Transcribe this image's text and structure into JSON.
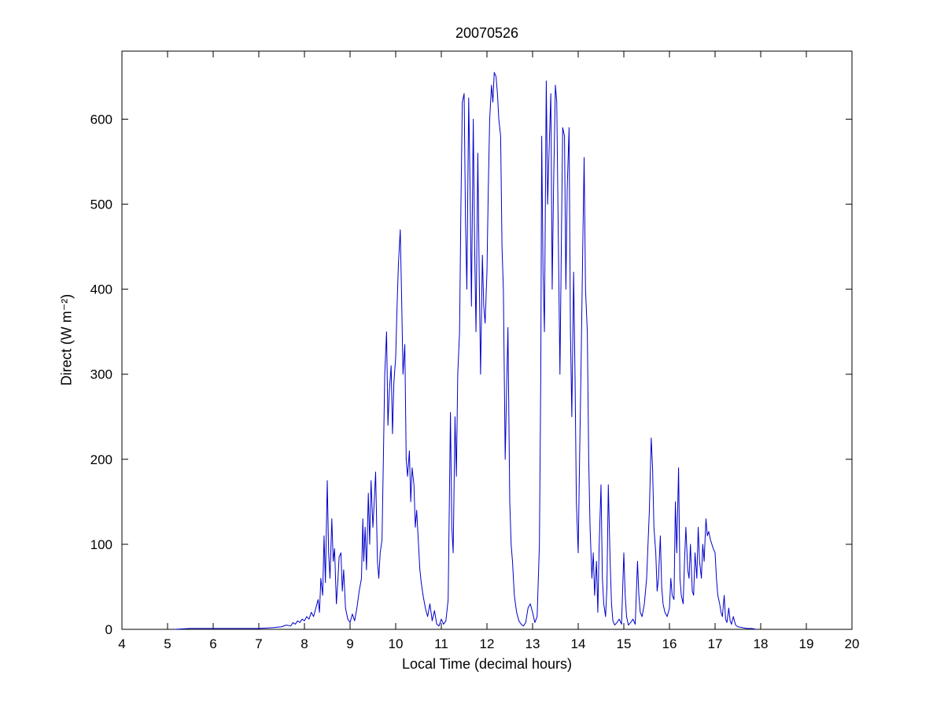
{
  "figure": {
    "background": "#FFFFFF"
  },
  "chart_data": {
    "type": "line",
    "title": "20070526",
    "xlabel": "Local Time (decimal hours)",
    "ylabel": "Direct (W m⁻²)",
    "xlim": [
      4,
      20
    ],
    "ylim": [
      0,
      680
    ],
    "x_ticks": [
      4,
      5,
      6,
      7,
      8,
      9,
      10,
      11,
      12,
      13,
      14,
      15,
      16,
      17,
      18,
      19,
      20
    ],
    "y_ticks": [
      0,
      100,
      200,
      300,
      400,
      500,
      600
    ],
    "grid": false,
    "legend": null,
    "line_color": "#0000CC",
    "axis_color": "#000000",
    "series": [
      {
        "name": "Direct",
        "points": [
          [
            5.15,
            0
          ],
          [
            5.5,
            1
          ],
          [
            6.0,
            1
          ],
          [
            6.5,
            1
          ],
          [
            7.0,
            1
          ],
          [
            7.3,
            2
          ],
          [
            7.5,
            3
          ],
          [
            7.6,
            5
          ],
          [
            7.7,
            4
          ],
          [
            7.75,
            8
          ],
          [
            7.8,
            6
          ],
          [
            7.85,
            10
          ],
          [
            7.9,
            8
          ],
          [
            7.95,
            12
          ],
          [
            8.0,
            10
          ],
          [
            8.05,
            15
          ],
          [
            8.1,
            12
          ],
          [
            8.15,
            20
          ],
          [
            8.2,
            15
          ],
          [
            8.25,
            25
          ],
          [
            8.3,
            35
          ],
          [
            8.33,
            20
          ],
          [
            8.36,
            60
          ],
          [
            8.4,
            40
          ],
          [
            8.43,
            110
          ],
          [
            8.46,
            55
          ],
          [
            8.5,
            175
          ],
          [
            8.53,
            90
          ],
          [
            8.56,
            60
          ],
          [
            8.6,
            130
          ],
          [
            8.63,
            80
          ],
          [
            8.66,
            95
          ],
          [
            8.7,
            30
          ],
          [
            8.73,
            55
          ],
          [
            8.76,
            85
          ],
          [
            8.8,
            90
          ],
          [
            8.83,
            45
          ],
          [
            8.86,
            70
          ],
          [
            8.9,
            25
          ],
          [
            8.95,
            12
          ],
          [
            9.0,
            8
          ],
          [
            9.05,
            18
          ],
          [
            9.1,
            10
          ],
          [
            9.15,
            25
          ],
          [
            9.2,
            45
          ],
          [
            9.25,
            60
          ],
          [
            9.28,
            130
          ],
          [
            9.3,
            80
          ],
          [
            9.33,
            120
          ],
          [
            9.36,
            70
          ],
          [
            9.4,
            160
          ],
          [
            9.43,
            100
          ],
          [
            9.46,
            175
          ],
          [
            9.5,
            120
          ],
          [
            9.53,
            150
          ],
          [
            9.56,
            185
          ],
          [
            9.6,
            80
          ],
          [
            9.63,
            60
          ],
          [
            9.66,
            90
          ],
          [
            9.7,
            105
          ],
          [
            9.73,
            200
          ],
          [
            9.76,
            300
          ],
          [
            9.8,
            350
          ],
          [
            9.83,
            240
          ],
          [
            9.86,
            280
          ],
          [
            9.9,
            310
          ],
          [
            9.93,
            230
          ],
          [
            9.96,
            290
          ],
          [
            10.0,
            320
          ],
          [
            10.03,
            380
          ],
          [
            10.06,
            430
          ],
          [
            10.1,
            470
          ],
          [
            10.13,
            390
          ],
          [
            10.16,
            300
          ],
          [
            10.2,
            335
          ],
          [
            10.23,
            200
          ],
          [
            10.26,
            180
          ],
          [
            10.3,
            210
          ],
          [
            10.33,
            150
          ],
          [
            10.36,
            190
          ],
          [
            10.4,
            170
          ],
          [
            10.43,
            120
          ],
          [
            10.46,
            140
          ],
          [
            10.5,
            100
          ],
          [
            10.53,
            70
          ],
          [
            10.56,
            55
          ],
          [
            10.6,
            40
          ],
          [
            10.65,
            25
          ],
          [
            10.7,
            15
          ],
          [
            10.75,
            30
          ],
          [
            10.8,
            10
          ],
          [
            10.85,
            22
          ],
          [
            10.9,
            6
          ],
          [
            10.95,
            4
          ],
          [
            11.0,
            12
          ],
          [
            11.05,
            6
          ],
          [
            11.1,
            10
          ],
          [
            11.15,
            35
          ],
          [
            11.2,
            255
          ],
          [
            11.23,
            120
          ],
          [
            11.26,
            90
          ],
          [
            11.3,
            250
          ],
          [
            11.33,
            180
          ],
          [
            11.36,
            300
          ],
          [
            11.4,
            350
          ],
          [
            11.43,
            500
          ],
          [
            11.46,
            620
          ],
          [
            11.5,
            630
          ],
          [
            11.53,
            480
          ],
          [
            11.56,
            400
          ],
          [
            11.6,
            625
          ],
          [
            11.63,
            520
          ],
          [
            11.66,
            380
          ],
          [
            11.7,
            600
          ],
          [
            11.73,
            450
          ],
          [
            11.76,
            350
          ],
          [
            11.8,
            560
          ],
          [
            11.83,
            420
          ],
          [
            11.86,
            300
          ],
          [
            11.9,
            440
          ],
          [
            11.93,
            380
          ],
          [
            11.96,
            360
          ],
          [
            12.0,
            420
          ],
          [
            12.03,
            520
          ],
          [
            12.06,
            600
          ],
          [
            12.1,
            640
          ],
          [
            12.13,
            620
          ],
          [
            12.16,
            655
          ],
          [
            12.2,
            650
          ],
          [
            12.23,
            630
          ],
          [
            12.26,
            600
          ],
          [
            12.3,
            580
          ],
          [
            12.33,
            450
          ],
          [
            12.36,
            400
          ],
          [
            12.4,
            200
          ],
          [
            12.43,
            280
          ],
          [
            12.46,
            355
          ],
          [
            12.5,
            150
          ],
          [
            12.53,
            100
          ],
          [
            12.56,
            80
          ],
          [
            12.6,
            40
          ],
          [
            12.65,
            20
          ],
          [
            12.7,
            10
          ],
          [
            12.75,
            6
          ],
          [
            12.8,
            4
          ],
          [
            12.85,
            8
          ],
          [
            12.9,
            25
          ],
          [
            12.95,
            30
          ],
          [
            13.0,
            20
          ],
          [
            13.05,
            8
          ],
          [
            13.1,
            15
          ],
          [
            13.15,
            100
          ],
          [
            13.18,
            300
          ],
          [
            13.2,
            580
          ],
          [
            13.23,
            420
          ],
          [
            13.26,
            350
          ],
          [
            13.3,
            645
          ],
          [
            13.33,
            500
          ],
          [
            13.36,
            560
          ],
          [
            13.4,
            630
          ],
          [
            13.43,
            400
          ],
          [
            13.46,
            520
          ],
          [
            13.5,
            640
          ],
          [
            13.53,
            620
          ],
          [
            13.56,
            480
          ],
          [
            13.6,
            300
          ],
          [
            13.63,
            450
          ],
          [
            13.66,
            590
          ],
          [
            13.7,
            580
          ],
          [
            13.73,
            400
          ],
          [
            13.76,
            520
          ],
          [
            13.8,
            590
          ],
          [
            13.83,
            350
          ],
          [
            13.86,
            250
          ],
          [
            13.9,
            420
          ],
          [
            13.93,
            300
          ],
          [
            13.96,
            150
          ],
          [
            14.0,
            90
          ],
          [
            14.03,
            200
          ],
          [
            14.06,
            300
          ],
          [
            14.1,
            450
          ],
          [
            14.13,
            555
          ],
          [
            14.16,
            400
          ],
          [
            14.2,
            350
          ],
          [
            14.23,
            200
          ],
          [
            14.26,
            120
          ],
          [
            14.3,
            60
          ],
          [
            14.33,
            90
          ],
          [
            14.36,
            40
          ],
          [
            14.4,
            80
          ],
          [
            14.43,
            20
          ],
          [
            14.46,
            100
          ],
          [
            14.5,
            170
          ],
          [
            14.53,
            60
          ],
          [
            14.56,
            30
          ],
          [
            14.6,
            15
          ],
          [
            14.63,
            50
          ],
          [
            14.66,
            170
          ],
          [
            14.7,
            80
          ],
          [
            14.73,
            30
          ],
          [
            14.76,
            10
          ],
          [
            14.8,
            5
          ],
          [
            14.85,
            8
          ],
          [
            14.9,
            12
          ],
          [
            14.95,
            6
          ],
          [
            15.0,
            90
          ],
          [
            15.03,
            40
          ],
          [
            15.06,
            15
          ],
          [
            15.1,
            5
          ],
          [
            15.15,
            8
          ],
          [
            15.2,
            12
          ],
          [
            15.25,
            6
          ],
          [
            15.3,
            80
          ],
          [
            15.33,
            40
          ],
          [
            15.36,
            20
          ],
          [
            15.4,
            15
          ],
          [
            15.45,
            30
          ],
          [
            15.5,
            60
          ],
          [
            15.53,
            100
          ],
          [
            15.56,
            140
          ],
          [
            15.6,
            225
          ],
          [
            15.63,
            190
          ],
          [
            15.66,
            120
          ],
          [
            15.7,
            90
          ],
          [
            15.73,
            45
          ],
          [
            15.76,
            60
          ],
          [
            15.8,
            110
          ],
          [
            15.83,
            50
          ],
          [
            15.86,
            30
          ],
          [
            15.9,
            20
          ],
          [
            15.95,
            15
          ],
          [
            16.0,
            25
          ],
          [
            16.03,
            60
          ],
          [
            16.06,
            40
          ],
          [
            16.1,
            35
          ],
          [
            16.13,
            150
          ],
          [
            16.16,
            90
          ],
          [
            16.2,
            190
          ],
          [
            16.23,
            60
          ],
          [
            16.26,
            40
          ],
          [
            16.3,
            30
          ],
          [
            16.33,
            80
          ],
          [
            16.36,
            120
          ],
          [
            16.4,
            70
          ],
          [
            16.43,
            60
          ],
          [
            16.46,
            100
          ],
          [
            16.5,
            45
          ],
          [
            16.53,
            40
          ],
          [
            16.56,
            90
          ],
          [
            16.6,
            60
          ],
          [
            16.63,
            120
          ],
          [
            16.66,
            80
          ],
          [
            16.7,
            60
          ],
          [
            16.73,
            100
          ],
          [
            16.76,
            80
          ],
          [
            16.8,
            130
          ],
          [
            16.83,
            110
          ],
          [
            16.86,
            115
          ],
          [
            16.9,
            105
          ],
          [
            16.93,
            100
          ],
          [
            16.96,
            95
          ],
          [
            17.0,
            90
          ],
          [
            17.03,
            60
          ],
          [
            17.06,
            40
          ],
          [
            17.1,
            30
          ],
          [
            17.13,
            20
          ],
          [
            17.16,
            15
          ],
          [
            17.2,
            40
          ],
          [
            17.23,
            12
          ],
          [
            17.26,
            8
          ],
          [
            17.3,
            25
          ],
          [
            17.33,
            10
          ],
          [
            17.36,
            6
          ],
          [
            17.4,
            15
          ],
          [
            17.45,
            5
          ],
          [
            17.5,
            3
          ],
          [
            17.6,
            2
          ],
          [
            17.7,
            1
          ],
          [
            17.8,
            1
          ],
          [
            17.9,
            0
          ]
        ]
      }
    ]
  }
}
